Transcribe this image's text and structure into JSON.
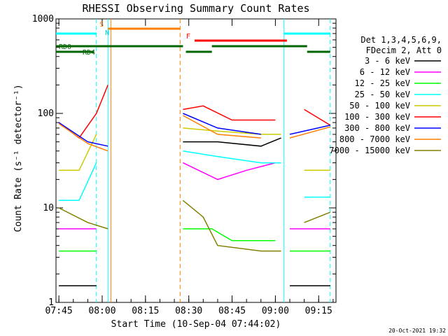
{
  "chart_data": {
    "type": "line",
    "title": "RHESSI Observing Summary Count Rates",
    "xlabel": "Start Time (10-Sep-04 07:44:02)",
    "ylabel": "Count Rate (s⁻¹ detector⁻¹)",
    "yscale": "log",
    "ylim": [
      1,
      1000
    ],
    "xlim": [
      "07:44",
      "09:21"
    ],
    "x_ticks": [
      "07:45",
      "08:00",
      "08:15",
      "08:30",
      "08:45",
      "09:00",
      "09:15"
    ],
    "y_ticks": [
      "1",
      "10",
      "100",
      "1000"
    ],
    "timestamp": "20-Oct-2021 19:32",
    "legend_header": [
      "Det 1,3,4,5,6,9,",
      "FDecim 2, Att 0"
    ],
    "flags": [
      {
        "label": "S",
        "color": "#ff8000",
        "segments": [
          [
            "08:02",
            "08:27"
          ]
        ],
        "level": 0
      },
      {
        "label": "F",
        "color": "#ff0000",
        "segments": [
          [
            "08:32",
            "09:04"
          ]
        ],
        "level": 1
      },
      {
        "label": "RD0",
        "color": "#006400",
        "segments": [
          [
            "07:44",
            "08:28"
          ],
          [
            "08:38",
            "09:11"
          ]
        ],
        "level": 2
      },
      {
        "label": "RD4",
        "color": "#006400",
        "segments": [
          [
            "07:44",
            "07:57"
          ],
          [
            "08:29",
            "08:38"
          ],
          [
            "09:11",
            "09:19"
          ]
        ],
        "level": 3
      }
    ],
    "markers": [
      {
        "label": "N",
        "time": "08:01",
        "color": "#00cccc"
      }
    ],
    "vertical_lines": [
      {
        "time": "07:58",
        "color": "#00ffff",
        "style": "dashed"
      },
      {
        "time": "08:02",
        "color": "#00ffff",
        "style": "solid"
      },
      {
        "time": "08:03",
        "color": "#ff8000",
        "style": "solid"
      },
      {
        "time": "08:27",
        "color": "#ff8000",
        "style": "dashed"
      },
      {
        "time": "09:03",
        "color": "#00ffff",
        "style": "solid"
      },
      {
        "time": "09:19",
        "color": "#00ffff",
        "style": "dashed"
      }
    ],
    "saa_bar": {
      "color": "#00ffff",
      "segments": [
        [
          "07:44",
          "07:58"
        ],
        [
          "09:03",
          "09:19"
        ]
      ]
    },
    "gaps": [
      [
        "08:03",
        "08:28"
      ],
      [
        "09:02",
        "09:04"
      ]
    ],
    "series": [
      {
        "name": "3 - 6 keV",
        "color": "#000000",
        "x": [
          "07:45",
          "07:58",
          "08:28",
          "08:40",
          "08:55",
          "09:02",
          "09:05",
          "09:19"
        ],
        "values": [
          1.5,
          1.5,
          50,
          50,
          45,
          55,
          1.5,
          1.5
        ]
      },
      {
        "name": "6 - 12 keV",
        "color": "#ff00ff",
        "x": [
          "07:45",
          "07:58",
          "08:28",
          "08:40",
          "08:50",
          "09:00",
          "09:05",
          "09:19"
        ],
        "values": [
          6,
          6,
          30,
          20,
          25,
          30,
          6,
          6
        ]
      },
      {
        "name": "12 - 25 keV",
        "color": "#00ff00",
        "x": [
          "07:45",
          "07:58",
          "08:28",
          "08:38",
          "08:45",
          "09:00",
          "09:05",
          "09:19"
        ],
        "values": [
          3.5,
          3.5,
          6,
          6,
          4.5,
          4.5,
          3.5,
          3.5
        ]
      },
      {
        "name": "25 - 50 keV",
        "color": "#00ffff",
        "x": [
          "07:45",
          "07:52",
          "07:58",
          "08:28",
          "08:40",
          "08:55",
          "09:02",
          "09:10",
          "09:19"
        ],
        "values": [
          12,
          12,
          30,
          40,
          35,
          30,
          30,
          13,
          13
        ]
      },
      {
        "name": "50 - 100 keV",
        "color": "#cccc00",
        "x": [
          "07:45",
          "07:52",
          "07:58",
          "08:28",
          "08:40",
          "08:55",
          "09:02",
          "09:10",
          "09:19"
        ],
        "values": [
          25,
          25,
          60,
          70,
          65,
          60,
          60,
          25,
          25
        ]
      },
      {
        "name": "100 - 300 keV",
        "color": "#ff0000",
        "x": [
          "07:45",
          "07:52",
          "07:58",
          "08:02",
          "08:28",
          "08:35",
          "08:45",
          "09:00",
          "09:10",
          "09:19"
        ],
        "values": [
          80,
          55,
          100,
          200,
          110,
          120,
          85,
          85,
          110,
          75
        ]
      },
      {
        "name": "300 - 800 keV",
        "color": "#0000ff",
        "x": [
          "07:45",
          "07:55",
          "08:02",
          "08:28",
          "08:40",
          "08:55",
          "09:05",
          "09:19"
        ],
        "values": [
          80,
          50,
          45,
          100,
          70,
          60,
          60,
          75
        ]
      },
      {
        "name": "800 - 7000 keV",
        "color": "#ff8000",
        "x": [
          "07:45",
          "07:55",
          "08:02",
          "08:28",
          "08:40",
          "08:55",
          "09:05",
          "09:19"
        ],
        "values": [
          78,
          48,
          40,
          95,
          60,
          55,
          55,
          72
        ]
      },
      {
        "name": "7000 - 15000 keV",
        "color": "#808000",
        "x": [
          "07:45",
          "07:55",
          "08:02",
          "08:28",
          "08:35",
          "08:40",
          "08:55",
          "09:02",
          "09:10",
          "09:19"
        ],
        "values": [
          10,
          7,
          6,
          12,
          8,
          4,
          3.5,
          3.5,
          7,
          9
        ]
      }
    ]
  }
}
